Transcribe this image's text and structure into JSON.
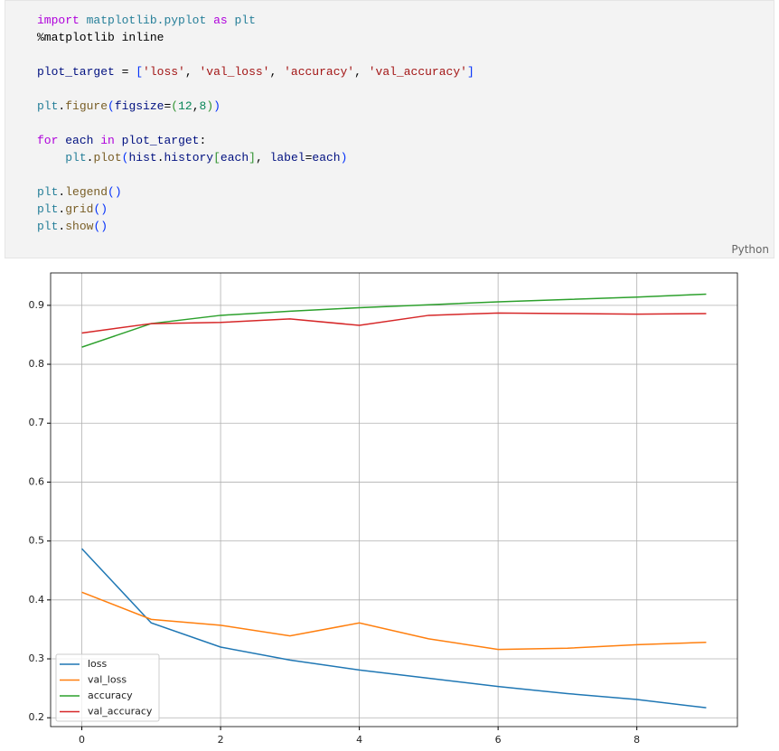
{
  "code": {
    "lines": [
      [
        {
          "text": "import",
          "color": "#af00db"
        },
        {
          "text": " ",
          "color": "#000000"
        },
        {
          "text": "matplotlib.pyplot",
          "color": "#267f99"
        },
        {
          "text": " ",
          "color": "#000000"
        },
        {
          "text": "as",
          "color": "#af00db"
        },
        {
          "text": " ",
          "color": "#000000"
        },
        {
          "text": "plt",
          "color": "#267f99"
        }
      ],
      [
        {
          "text": "%matplotlib inline",
          "color": "#000000"
        }
      ],
      [],
      [
        {
          "text": "plot_target",
          "color": "#001080"
        },
        {
          "text": " = ",
          "color": "#000000"
        },
        {
          "text": "[",
          "color": "#0431fa"
        },
        {
          "text": "'loss'",
          "color": "#a31515"
        },
        {
          "text": ", ",
          "color": "#000000"
        },
        {
          "text": "'val_loss'",
          "color": "#a31515"
        },
        {
          "text": ", ",
          "color": "#000000"
        },
        {
          "text": "'accuracy'",
          "color": "#a31515"
        },
        {
          "text": ", ",
          "color": "#000000"
        },
        {
          "text": "'val_accuracy'",
          "color": "#a31515"
        },
        {
          "text": "]",
          "color": "#0431fa"
        }
      ],
      [],
      [
        {
          "text": "plt",
          "color": "#267f99"
        },
        {
          "text": ".",
          "color": "#000000"
        },
        {
          "text": "figure",
          "color": "#795e26"
        },
        {
          "text": "(",
          "color": "#0431fa"
        },
        {
          "text": "figsize",
          "color": "#001080"
        },
        {
          "text": "=",
          "color": "#000000"
        },
        {
          "text": "(",
          "color": "#319331"
        },
        {
          "text": "12",
          "color": "#098658"
        },
        {
          "text": ",",
          "color": "#000000"
        },
        {
          "text": "8",
          "color": "#098658"
        },
        {
          "text": ")",
          "color": "#319331"
        },
        {
          "text": ")",
          "color": "#0431fa"
        }
      ],
      [],
      [
        {
          "text": "for",
          "color": "#af00db"
        },
        {
          "text": " ",
          "color": "#000000"
        },
        {
          "text": "each",
          "color": "#001080"
        },
        {
          "text": " ",
          "color": "#000000"
        },
        {
          "text": "in",
          "color": "#af00db"
        },
        {
          "text": " ",
          "color": "#000000"
        },
        {
          "text": "plot_target",
          "color": "#001080"
        },
        {
          "text": ":",
          "color": "#000000"
        }
      ],
      [
        {
          "text": "    ",
          "color": "#000000"
        },
        {
          "text": "plt",
          "color": "#267f99"
        },
        {
          "text": ".",
          "color": "#000000"
        },
        {
          "text": "plot",
          "color": "#795e26"
        },
        {
          "text": "(",
          "color": "#0431fa"
        },
        {
          "text": "hist",
          "color": "#001080"
        },
        {
          "text": ".",
          "color": "#000000"
        },
        {
          "text": "history",
          "color": "#001080"
        },
        {
          "text": "[",
          "color": "#319331"
        },
        {
          "text": "each",
          "color": "#001080"
        },
        {
          "text": "]",
          "color": "#319331"
        },
        {
          "text": ", ",
          "color": "#000000"
        },
        {
          "text": "label",
          "color": "#001080"
        },
        {
          "text": "=",
          "color": "#000000"
        },
        {
          "text": "each",
          "color": "#001080"
        },
        {
          "text": ")",
          "color": "#0431fa"
        }
      ],
      [],
      [
        {
          "text": "plt",
          "color": "#267f99"
        },
        {
          "text": ".",
          "color": "#000000"
        },
        {
          "text": "legend",
          "color": "#795e26"
        },
        {
          "text": "()",
          "color": "#0431fa"
        }
      ],
      [
        {
          "text": "plt",
          "color": "#267f99"
        },
        {
          "text": ".",
          "color": "#000000"
        },
        {
          "text": "grid",
          "color": "#795e26"
        },
        {
          "text": "()",
          "color": "#0431fa"
        }
      ],
      [
        {
          "text": "plt",
          "color": "#267f99"
        },
        {
          "text": ".",
          "color": "#000000"
        },
        {
          "text": "show",
          "color": "#795e26"
        },
        {
          "text": "()",
          "color": "#0431fa"
        }
      ]
    ],
    "language": "Python"
  },
  "chart_data": {
    "type": "line",
    "x": [
      0,
      1,
      2,
      3,
      4,
      5,
      6,
      7,
      8,
      9
    ],
    "series": [
      {
        "name": "loss",
        "color": "#1f77b4",
        "values": [
          0.487,
          0.361,
          0.32,
          0.298,
          0.281,
          0.267,
          0.253,
          0.241,
          0.231,
          0.217
        ]
      },
      {
        "name": "val_loss",
        "color": "#ff7f0e",
        "values": [
          0.413,
          0.367,
          0.357,
          0.339,
          0.361,
          0.334,
          0.316,
          0.318,
          0.324,
          0.328
        ]
      },
      {
        "name": "accuracy",
        "color": "#2ca02c",
        "values": [
          0.829,
          0.869,
          0.883,
          0.89,
          0.896,
          0.901,
          0.906,
          0.91,
          0.914,
          0.919
        ]
      },
      {
        "name": "val_accuracy",
        "color": "#d62728",
        "values": [
          0.853,
          0.869,
          0.871,
          0.877,
          0.866,
          0.883,
          0.887,
          0.886,
          0.885,
          0.886
        ]
      }
    ],
    "xlim": [
      -0.45,
      9.45
    ],
    "xticks": [
      0,
      2,
      4,
      6,
      8
    ],
    "ylim": [
      0.185,
      0.955
    ],
    "yticks": [
      0.2,
      0.3,
      0.4,
      0.5,
      0.6,
      0.7,
      0.8,
      0.9
    ],
    "grid": true,
    "legend": "lower left"
  }
}
